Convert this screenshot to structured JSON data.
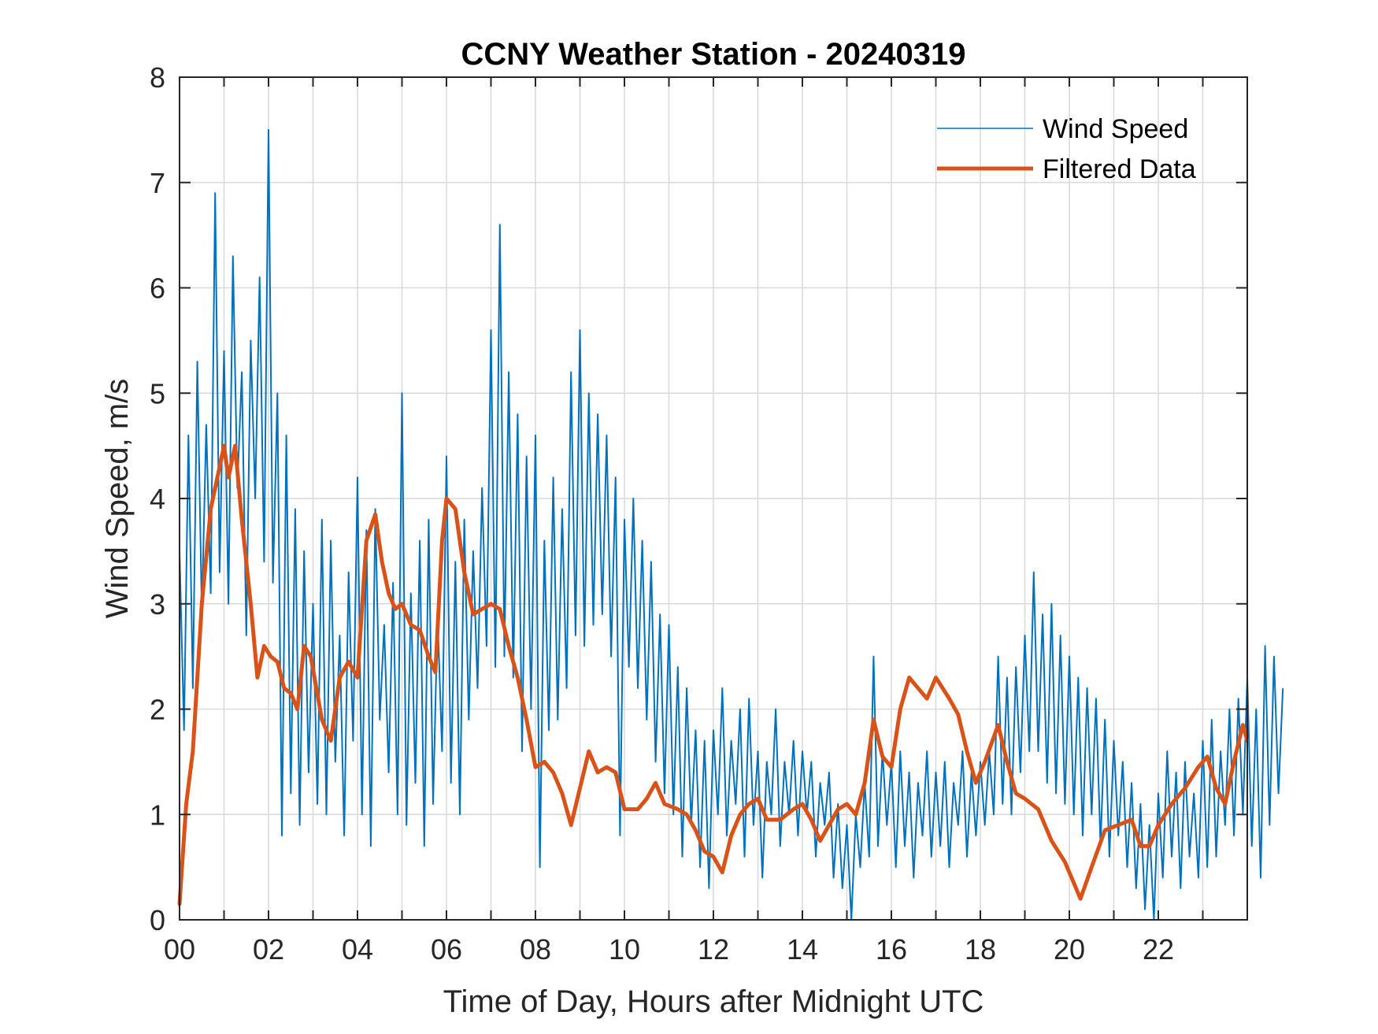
{
  "chart_data": {
    "type": "line",
    "title": "CCNY Weather Station - 20240319",
    "xlabel": "Time of Day, Hours after Midnight UTC",
    "ylabel": "Wind Speed, m/s",
    "xlim": [
      0,
      24
    ],
    "ylim": [
      0,
      8
    ],
    "grid": true,
    "legend_position": "top-right",
    "x_ticks": [
      0,
      2,
      4,
      6,
      8,
      10,
      12,
      14,
      16,
      18,
      20,
      22
    ],
    "x_tick_labels": [
      "00",
      "02",
      "04",
      "06",
      "08",
      "10",
      "12",
      "14",
      "16",
      "18",
      "20",
      "22"
    ],
    "x_minor_ticks_every_hours": 1,
    "y_ticks": [
      0,
      1,
      2,
      3,
      4,
      5,
      6,
      7,
      8
    ],
    "y_tick_labels": [
      "0",
      "1",
      "2",
      "3",
      "4",
      "5",
      "6",
      "7",
      "8"
    ],
    "series": [
      {
        "name": "Wind Speed",
        "color": "#0072BD",
        "x_step_hours": 0.1,
        "values": [
          3.5,
          1.8,
          4.6,
          2.2,
          5.3,
          2.9,
          4.7,
          3.1,
          6.9,
          3.3,
          5.4,
          3.0,
          6.3,
          4.1,
          5.2,
          2.7,
          5.5,
          4.0,
          6.1,
          3.4,
          7.5,
          3.2,
          5.0,
          0.8,
          4.6,
          1.2,
          3.9,
          0.9,
          3.5,
          1.4,
          3.0,
          1.1,
          3.8,
          1.0,
          3.6,
          1.5,
          2.7,
          0.8,
          3.3,
          1.7,
          4.2,
          1.0,
          3.7,
          0.7,
          3.9,
          1.9,
          2.8,
          1.4,
          3.2,
          1.0,
          5.0,
          0.9,
          3.1,
          1.3,
          3.6,
          0.7,
          3.8,
          1.1,
          2.9,
          1.6,
          4.4,
          1.3,
          3.4,
          1.0,
          3.8,
          1.9,
          3.5,
          2.2,
          4.1,
          2.6,
          5.6,
          2.4,
          6.6,
          2.5,
          5.2,
          2.3,
          4.8,
          1.6,
          4.4,
          2.0,
          4.6,
          0.5,
          3.6,
          1.8,
          4.2,
          1.9,
          3.9,
          2.2,
          5.2,
          2.7,
          5.6,
          2.6,
          5.0,
          2.8,
          4.8,
          2.9,
          4.6,
          2.5,
          4.2,
          0.8,
          3.8,
          2.4,
          4.0,
          2.2,
          3.6,
          1.9,
          3.4,
          1.5,
          2.9,
          1.2,
          2.8,
          1.0,
          2.4,
          0.6,
          2.2,
          0.9,
          1.8,
          0.5,
          1.7,
          0.3,
          1.8,
          1.0,
          2.2,
          0.8,
          1.7,
          1.1,
          2.0,
          0.6,
          2.1,
          0.9,
          1.6,
          0.4,
          1.5,
          1.0,
          2.0,
          0.7,
          1.5,
          1.0,
          1.7,
          0.8,
          1.6,
          1.0,
          1.5,
          0.6,
          1.3,
          0.9,
          1.4,
          0.4,
          1.1,
          0.3,
          0.9,
          0.0,
          1.0,
          0.5,
          1.3,
          0.6,
          2.5,
          0.7,
          1.6,
          0.9,
          1.5,
          0.5,
          1.6,
          0.7,
          1.4,
          0.4,
          1.3,
          0.8,
          1.6,
          0.6,
          1.4,
          0.7,
          1.5,
          0.5,
          1.3,
          0.9,
          1.6,
          0.6,
          1.4,
          0.8,
          1.5,
          0.9,
          1.6,
          1.0,
          2.5,
          1.1,
          2.3,
          1.0,
          2.4,
          1.4,
          2.7,
          1.6,
          3.3,
          1.6,
          2.9,
          1.3,
          3.0,
          1.2,
          2.7,
          1.1,
          2.5,
          1.0,
          2.3,
          0.8,
          2.2,
          1.0,
          2.1,
          0.7,
          1.9,
          0.6,
          1.7,
          0.8,
          1.5,
          0.5,
          1.3,
          0.3,
          1.1,
          0.1,
          0.9,
          0.0,
          1.2,
          0.4,
          1.6,
          0.6,
          1.4,
          0.3,
          1.5,
          0.6,
          1.2,
          0.4,
          1.7,
          0.5,
          1.9,
          0.6,
          1.6,
          0.9,
          2.0,
          0.8,
          2.1,
          1.0,
          2.3,
          0.7,
          2.0,
          0.4,
          2.6,
          0.9,
          2.5,
          1.2,
          2.2
        ]
      },
      {
        "name": "Filtered Data",
        "color": "#D95319",
        "points": [
          [
            0,
            0.15
          ],
          [
            0.15,
            1.1
          ],
          [
            0.3,
            1.6
          ],
          [
            0.5,
            3.0
          ],
          [
            0.7,
            3.9
          ],
          [
            0.9,
            4.3
          ],
          [
            1.0,
            4.5
          ],
          [
            1.1,
            4.2
          ],
          [
            1.25,
            4.5
          ],
          [
            1.4,
            3.8
          ],
          [
            1.6,
            3.0
          ],
          [
            1.75,
            2.3
          ],
          [
            1.9,
            2.6
          ],
          [
            2.05,
            2.5
          ],
          [
            2.2,
            2.45
          ],
          [
            2.35,
            2.2
          ],
          [
            2.5,
            2.15
          ],
          [
            2.65,
            2.0
          ],
          [
            2.8,
            2.6
          ],
          [
            2.95,
            2.5
          ],
          [
            3.2,
            1.9
          ],
          [
            3.4,
            1.7
          ],
          [
            3.6,
            2.3
          ],
          [
            3.8,
            2.45
          ],
          [
            4.0,
            2.3
          ],
          [
            4.2,
            3.6
          ],
          [
            4.4,
            3.85
          ],
          [
            4.55,
            3.4
          ],
          [
            4.7,
            3.1
          ],
          [
            4.85,
            2.95
          ],
          [
            5.0,
            3.0
          ],
          [
            5.2,
            2.8
          ],
          [
            5.4,
            2.75
          ],
          [
            5.6,
            2.5
          ],
          [
            5.75,
            2.35
          ],
          [
            5.9,
            3.6
          ],
          [
            6.0,
            4.0
          ],
          [
            6.2,
            3.9
          ],
          [
            6.4,
            3.3
          ],
          [
            6.6,
            2.9
          ],
          [
            6.8,
            2.95
          ],
          [
            7.0,
            3.0
          ],
          [
            7.2,
            2.95
          ],
          [
            7.4,
            2.6
          ],
          [
            7.6,
            2.3
          ],
          [
            7.8,
            1.9
          ],
          [
            8.0,
            1.45
          ],
          [
            8.2,
            1.5
          ],
          [
            8.4,
            1.4
          ],
          [
            8.6,
            1.2
          ],
          [
            8.8,
            0.9
          ],
          [
            9.0,
            1.25
          ],
          [
            9.2,
            1.6
          ],
          [
            9.4,
            1.4
          ],
          [
            9.6,
            1.45
          ],
          [
            9.8,
            1.4
          ],
          [
            10.0,
            1.05
          ],
          [
            10.3,
            1.05
          ],
          [
            10.5,
            1.15
          ],
          [
            10.7,
            1.3
          ],
          [
            10.9,
            1.1
          ],
          [
            11.2,
            1.05
          ],
          [
            11.4,
            1.0
          ],
          [
            11.6,
            0.85
          ],
          [
            11.8,
            0.65
          ],
          [
            12.0,
            0.6
          ],
          [
            12.2,
            0.45
          ],
          [
            12.4,
            0.8
          ],
          [
            12.6,
            1.0
          ],
          [
            12.8,
            1.1
          ],
          [
            13.0,
            1.15
          ],
          [
            13.2,
            0.95
          ],
          [
            13.5,
            0.95
          ],
          [
            13.8,
            1.05
          ],
          [
            14.0,
            1.1
          ],
          [
            14.2,
            0.95
          ],
          [
            14.4,
            0.75
          ],
          [
            14.6,
            0.9
          ],
          [
            14.8,
            1.05
          ],
          [
            15.0,
            1.1
          ],
          [
            15.2,
            1.0
          ],
          [
            15.4,
            1.3
          ],
          [
            15.6,
            1.9
          ],
          [
            15.8,
            1.55
          ],
          [
            16.0,
            1.45
          ],
          [
            16.2,
            2.0
          ],
          [
            16.4,
            2.3
          ],
          [
            16.6,
            2.2
          ],
          [
            16.8,
            2.1
          ],
          [
            17.0,
            2.3
          ],
          [
            17.3,
            2.1
          ],
          [
            17.5,
            1.95
          ],
          [
            17.7,
            1.6
          ],
          [
            17.9,
            1.3
          ],
          [
            18.1,
            1.5
          ],
          [
            18.4,
            1.85
          ],
          [
            18.6,
            1.5
          ],
          [
            18.8,
            1.2
          ],
          [
            19.0,
            1.15
          ],
          [
            19.3,
            1.05
          ],
          [
            19.6,
            0.75
          ],
          [
            19.9,
            0.55
          ],
          [
            20.1,
            0.35
          ],
          [
            20.25,
            0.2
          ],
          [
            20.5,
            0.5
          ],
          [
            20.8,
            0.85
          ],
          [
            21.1,
            0.9
          ],
          [
            21.4,
            0.95
          ],
          [
            21.6,
            0.7
          ],
          [
            21.8,
            0.7
          ],
          [
            22.0,
            0.9
          ],
          [
            22.3,
            1.1
          ],
          [
            22.6,
            1.25
          ],
          [
            22.9,
            1.45
          ],
          [
            23.1,
            1.55
          ],
          [
            23.3,
            1.25
          ],
          [
            23.5,
            1.1
          ],
          [
            23.7,
            1.5
          ],
          [
            23.9,
            1.85
          ],
          [
            24.0,
            1.7
          ]
        ]
      }
    ]
  }
}
